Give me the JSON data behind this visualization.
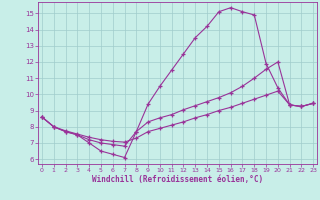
{
  "bg_color": "#c8eee8",
  "grid_color": "#a0cccc",
  "line_color": "#993399",
  "xlabel": "Windchill (Refroidissement éolien,°C)",
  "xticks": [
    0,
    1,
    2,
    3,
    4,
    5,
    6,
    7,
    8,
    9,
    10,
    11,
    12,
    13,
    14,
    15,
    16,
    17,
    18,
    19,
    20,
    21,
    22,
    23
  ],
  "yticks": [
    6,
    7,
    8,
    9,
    10,
    11,
    12,
    13,
    14,
    15
  ],
  "xlim": [
    -0.3,
    23.3
  ],
  "ylim": [
    5.7,
    15.7
  ],
  "line1_x": [
    0,
    1,
    2,
    3,
    4,
    5,
    6,
    7,
    8,
    9,
    10,
    11,
    12,
    13,
    14,
    15,
    16,
    17,
    18,
    19,
    20,
    21,
    22,
    23
  ],
  "line1_y": [
    8.6,
    8.0,
    7.7,
    7.5,
    7.0,
    6.5,
    6.3,
    6.1,
    7.7,
    9.4,
    10.5,
    11.5,
    12.5,
    13.5,
    14.2,
    15.1,
    15.35,
    15.1,
    14.9,
    11.9,
    10.4,
    9.35,
    9.25,
    9.45
  ],
  "line2_x": [
    0,
    1,
    2,
    3,
    4,
    5,
    6,
    7,
    8,
    9,
    10,
    11,
    12,
    13,
    14,
    15,
    16,
    17,
    18,
    19,
    20,
    21,
    22,
    23
  ],
  "line2_y": [
    8.6,
    8.0,
    7.7,
    7.5,
    7.2,
    7.0,
    6.9,
    6.8,
    7.7,
    8.3,
    8.55,
    8.75,
    9.05,
    9.3,
    9.55,
    9.8,
    10.1,
    10.5,
    11.0,
    11.55,
    12.0,
    9.35,
    9.25,
    9.45
  ],
  "line3_x": [
    0,
    1,
    2,
    3,
    4,
    5,
    6,
    7,
    8,
    9,
    10,
    11,
    12,
    13,
    14,
    15,
    16,
    17,
    18,
    19,
    20,
    21,
    22,
    23
  ],
  "line3_y": [
    8.6,
    8.0,
    7.75,
    7.55,
    7.35,
    7.2,
    7.1,
    7.05,
    7.3,
    7.7,
    7.9,
    8.1,
    8.3,
    8.55,
    8.75,
    9.0,
    9.2,
    9.45,
    9.7,
    9.95,
    10.2,
    9.35,
    9.25,
    9.45
  ]
}
